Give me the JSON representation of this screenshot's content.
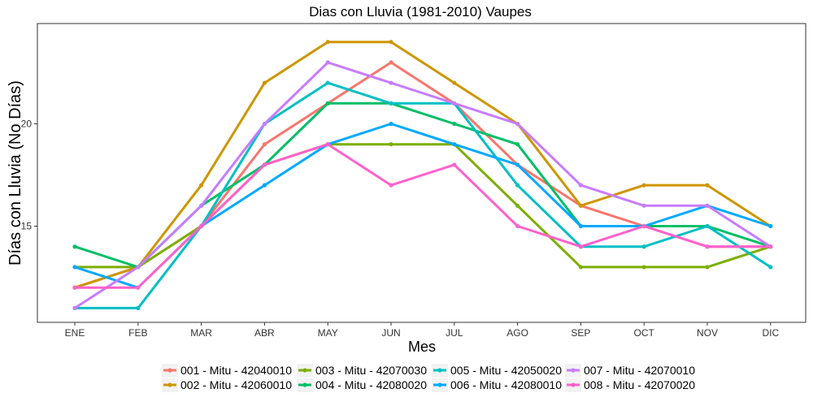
{
  "chart_data": {
    "type": "line",
    "title": "Dias con Lluvia (1981-2010)  Vaupes",
    "xlabel": "Mes",
    "ylabel": "Días con Lluvia (No Días)",
    "categories": [
      "ENE",
      "FEB",
      "MAR",
      "ABR",
      "MAY",
      "JUN",
      "JUL",
      "AGO",
      "SEP",
      "OCT",
      "NOV",
      "DIC"
    ],
    "yticks": [
      15,
      20
    ],
    "ylim": [
      10.3,
      24.9
    ],
    "grid": false,
    "legend_position": "bottom",
    "series": [
      {
        "name": "001 - Mitu - 42040010",
        "color": "#F8766D",
        "values": [
          12,
          13,
          15,
          19,
          21,
          23,
          21,
          18,
          16,
          15,
          14,
          14
        ]
      },
      {
        "name": "002 - Mitu - 42060010",
        "color": "#CD9600",
        "values": [
          12,
          13,
          17,
          22,
          24,
          24,
          22,
          20,
          16,
          17,
          17,
          15
        ]
      },
      {
        "name": "003 - Mitu - 42070030",
        "color": "#7CAE00",
        "values": [
          13,
          13,
          15,
          18,
          19,
          19,
          19,
          16,
          13,
          13,
          13,
          14
        ]
      },
      {
        "name": "004 - Mitu - 42080020",
        "color": "#00BE67",
        "values": [
          14,
          13,
          16,
          18,
          21,
          21,
          20,
          19,
          15,
          15,
          15,
          14
        ]
      },
      {
        "name": "005 - Mitu - 42050020",
        "color": "#00BFC4",
        "values": [
          11,
          11,
          15,
          20,
          22,
          21,
          21,
          17,
          14,
          14,
          15,
          13
        ]
      },
      {
        "name": "006 - Mitu - 42080010",
        "color": "#00A9FF",
        "values": [
          13,
          12,
          15,
          17,
          19,
          20,
          19,
          18,
          15,
          15,
          16,
          15
        ]
      },
      {
        "name": "007 - Mitu - 42070010",
        "color": "#C77CFF",
        "values": [
          11,
          13,
          16,
          20,
          23,
          22,
          21,
          20,
          17,
          16,
          16,
          14
        ]
      },
      {
        "name": "008 - Mitu - 42070020",
        "color": "#FF61CC",
        "values": [
          12,
          12,
          15,
          18,
          19,
          17,
          18,
          15,
          14,
          15,
          14,
          14
        ]
      }
    ]
  }
}
